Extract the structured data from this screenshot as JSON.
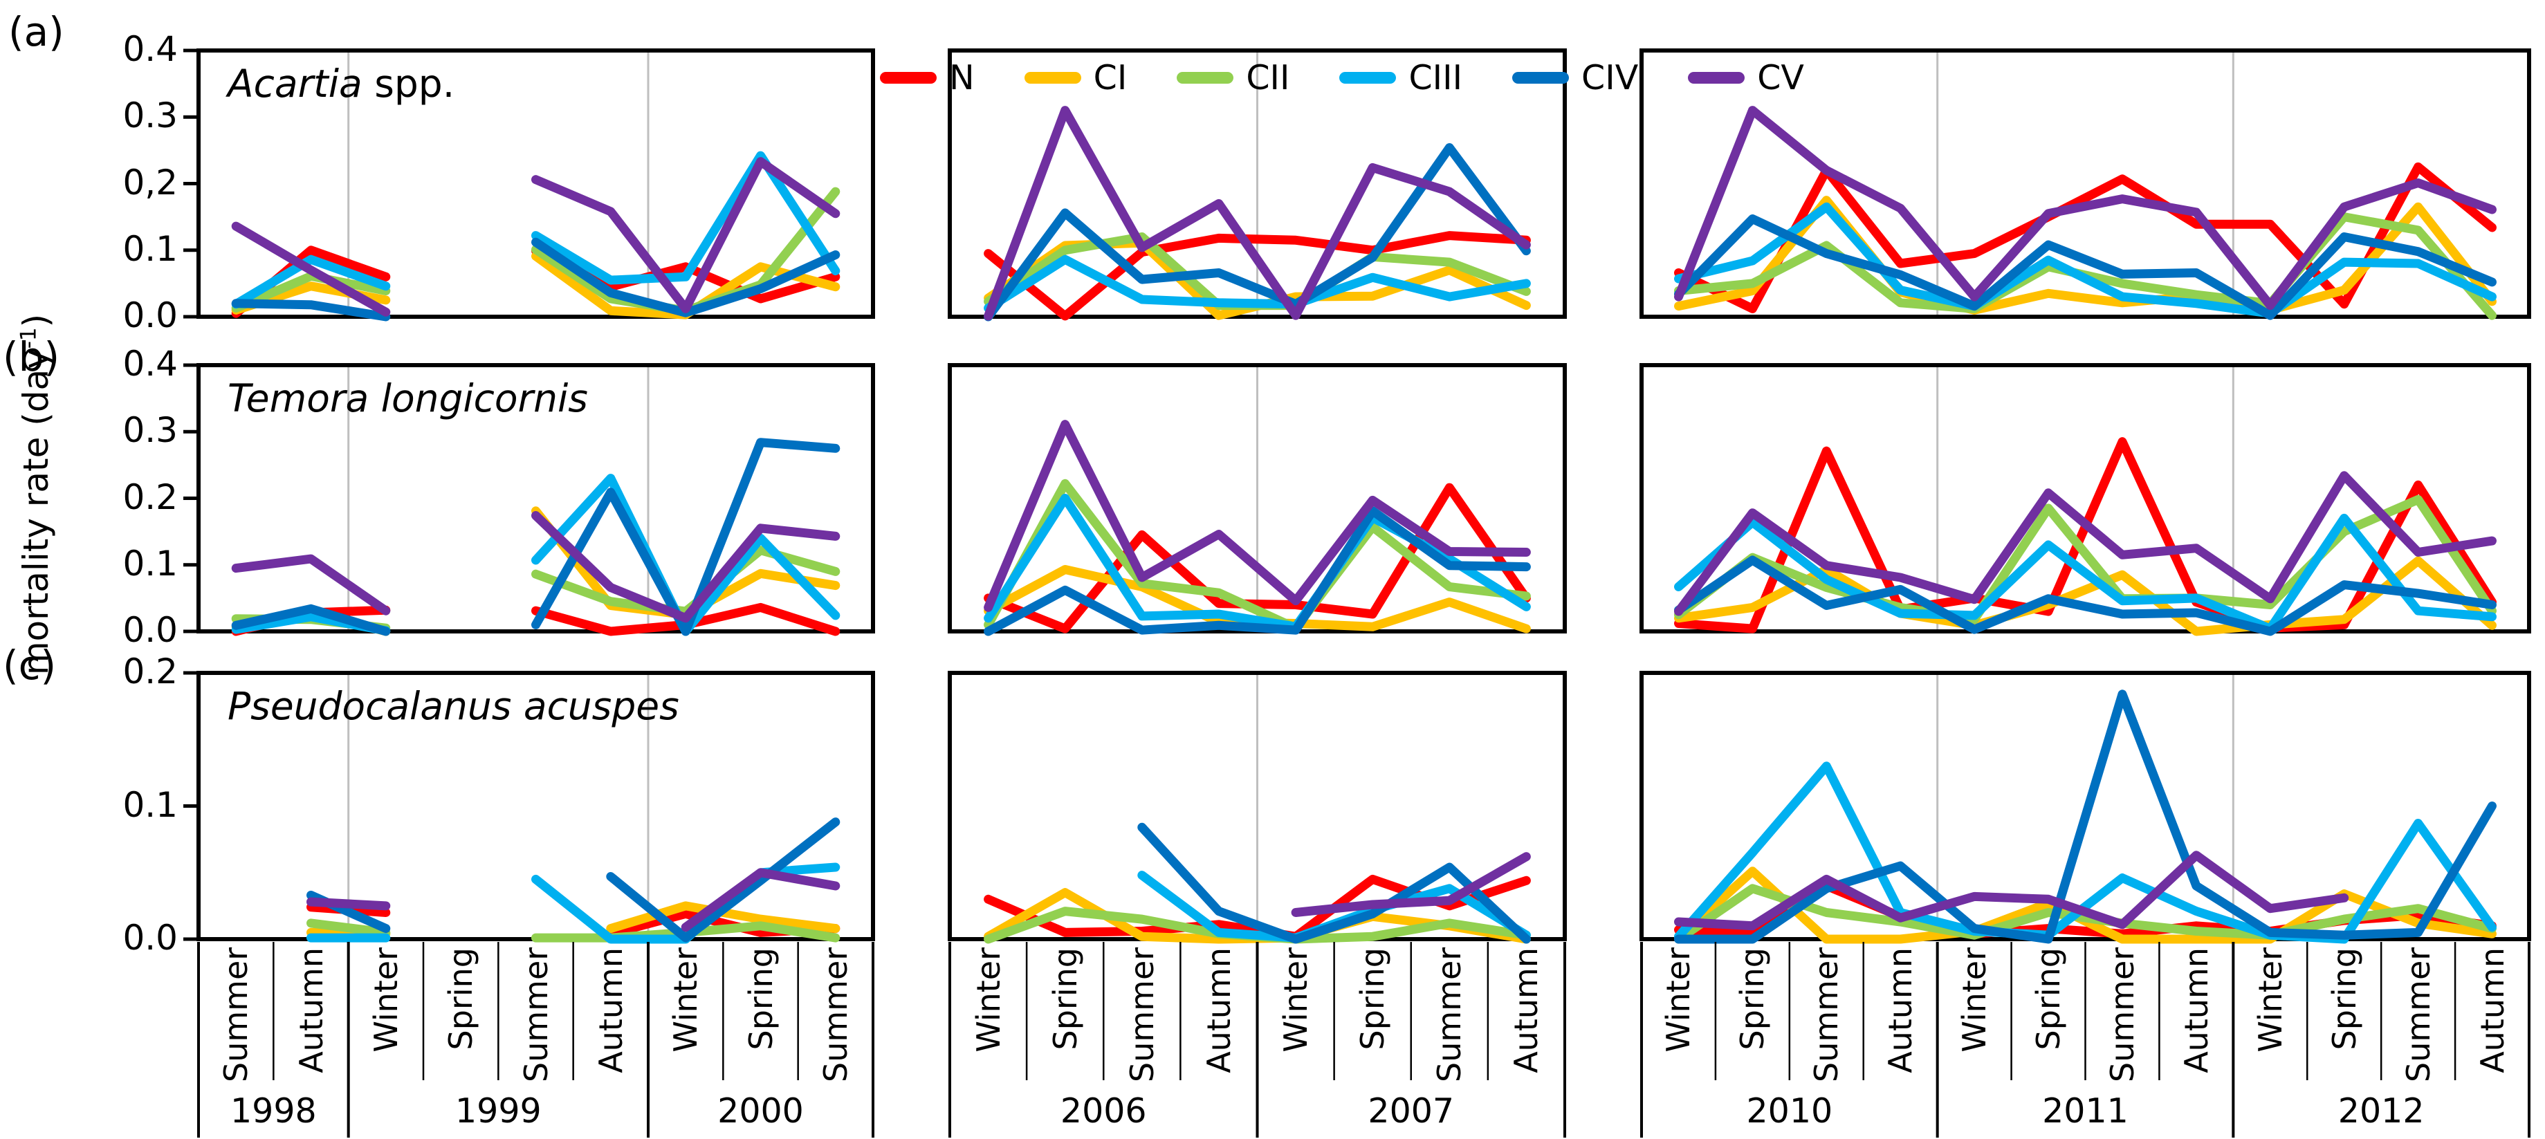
{
  "figure": {
    "panel_letters": [
      "(a)",
      "(b)",
      "(c)"
    ],
    "y_axis_label": {
      "prefix": "mortality rate (day",
      "superscript": "-1",
      "suffix": ")"
    }
  },
  "legend": {
    "items": [
      {
        "label": "N",
        "color": "#FF0000"
      },
      {
        "label": "CI",
        "color": "#FFC000"
      },
      {
        "label": "CII",
        "color": "#92D050"
      },
      {
        "label": "CIII",
        "color": "#00B0F0"
      },
      {
        "label": "CIV",
        "color": "#0070C0"
      },
      {
        "label": "CV",
        "color": "#7030A0"
      }
    ]
  },
  "x_axis": {
    "groups": [
      {
        "years": [
          {
            "label": "1998",
            "seasons": [
              "Summer",
              "Autumn"
            ]
          },
          {
            "label": "1999",
            "seasons": [
              "Winter",
              "Spring",
              "Summer",
              "Autumn"
            ]
          },
          {
            "label": "2000",
            "seasons": [
              "Winter",
              "Spring",
              "Summer"
            ]
          }
        ]
      },
      {
        "years": [
          {
            "label": "2006",
            "seasons": [
              "Winter",
              "Spring",
              "Summer",
              "Autumn"
            ]
          },
          {
            "label": "2007",
            "seasons": [
              "Winter",
              "Spring",
              "Summer",
              "Autumn"
            ]
          }
        ]
      },
      {
        "years": [
          {
            "label": "2010",
            "seasons": [
              "Winter",
              "Spring",
              "Summer",
              "Autumn"
            ]
          },
          {
            "label": "2011",
            "seasons": [
              "Winter",
              "Spring",
              "Summer",
              "Autumn"
            ]
          },
          {
            "label": "2012",
            "seasons": [
              "Winter",
              "Spring",
              "Summer",
              "Autumn"
            ]
          }
        ]
      }
    ]
  },
  "chart_data": [
    {
      "type": "line",
      "title": {
        "italic": "Acartia",
        "normal": " spp."
      },
      "ylim": [
        0,
        0.4
      ],
      "yticks": [
        "0.0",
        "0.1",
        "0,2",
        "0.3",
        "0.4"
      ],
      "x_categories": [
        "Summer 1998",
        "Autumn 1998",
        "Winter 1999",
        "Spring 1999",
        "Summer 1999",
        "Autumn 1999",
        "Winter 2000",
        "Spring 2000",
        "Summer 2000",
        "Winter 2006",
        "Spring 2006",
        "Summer 2006",
        "Autumn 2006",
        "Winter 2007",
        "Spring 2007",
        "Summer 2007",
        "Autumn 2007",
        "Winter 2010",
        "Spring 2010",
        "Summer 2010",
        "Autumn 2010",
        "Winter 2011",
        "Spring 2011",
        "Summer 2011",
        "Autumn 2011",
        "Winter 2012",
        "Spring 2012",
        "Summer 2012",
        "Autumn 2012"
      ],
      "series": [
        {
          "name": "N",
          "values": [
            0.005,
            0.1,
            0.06,
            null,
            0.099,
            0.045,
            0.075,
            0.027,
            0.06,
            0.095,
            0.001,
            0.097,
            0.118,
            0.115,
            0.1,
            0.122,
            0.115,
            0.066,
            0.012,
            0.22,
            0.08,
            0.095,
            0.15,
            0.207,
            0.139,
            0.139,
            0.019,
            0.225,
            0.134
          ]
        },
        {
          "name": "CI",
          "values": [
            0.01,
            0.046,
            0.025,
            null,
            0.091,
            0.009,
            0.003,
            0.075,
            0.045,
            0.028,
            0.107,
            0.111,
            0.002,
            0.03,
            0.031,
            0.07,
            0.017,
            0.016,
            0.039,
            0.175,
            0.037,
            0.01,
            0.035,
            0.021,
            0.031,
            0.01,
            0.04,
            0.165,
            0.023
          ]
        },
        {
          "name": "CII",
          "values": [
            0.013,
            0.061,
            0.039,
            null,
            0.101,
            0.027,
            0.009,
            0.048,
            0.188,
            0.023,
            0.1,
            0.12,
            0.017,
            0.017,
            0.09,
            0.082,
            0.038,
            0.039,
            0.05,
            0.107,
            0.021,
            0.012,
            0.075,
            0.05,
            0.033,
            0.02,
            0.15,
            0.13,
            0.002
          ]
        },
        {
          "name": "CIII",
          "values": [
            0.019,
            0.086,
            0.046,
            null,
            0.122,
            0.055,
            0.06,
            0.242,
            0.069,
            0.013,
            0.086,
            0.026,
            0.021,
            0.019,
            0.059,
            0.03,
            0.05,
            0.057,
            0.084,
            0.165,
            0.04,
            0.016,
            0.085,
            0.03,
            0.02,
            0.005,
            0.082,
            0.08,
            0.03
          ]
        },
        {
          "name": "CIV",
          "values": [
            0.02,
            0.018,
            0.0,
            null,
            0.112,
            0.036,
            0.006,
            0.042,
            0.093,
            0.0,
            0.156,
            0.056,
            0.066,
            0.019,
            0.089,
            0.254,
            0.099,
            0.034,
            0.147,
            0.095,
            0.063,
            0.016,
            0.108,
            0.064,
            0.066,
            0.002,
            0.12,
            0.098,
            0.052
          ]
        },
        {
          "name": "CV",
          "values": [
            0.136,
            0.07,
            0.007,
            null,
            0.206,
            0.158,
            0.012,
            0.233,
            0.155,
            0.001,
            0.31,
            0.104,
            0.17,
            0.002,
            0.224,
            0.188,
            0.108,
            0.03,
            0.31,
            0.22,
            0.163,
            0.03,
            0.155,
            0.177,
            0.157,
            0.017,
            0.165,
            0.201,
            0.161
          ]
        }
      ]
    },
    {
      "type": "line",
      "title": {
        "italic": "Temora longicornis",
        "normal": ""
      },
      "ylim": [
        0,
        0.4
      ],
      "yticks": [
        "0.0",
        "0.1",
        "0.2",
        "0.3",
        "0.4"
      ],
      "x_categories": [
        "Summer 1998",
        "Autumn 1998",
        "Winter 1999",
        "Spring 1999",
        "Summer 1999",
        "Autumn 1999",
        "Winter 2000",
        "Spring 2000",
        "Summer 2000",
        "Winter 2006",
        "Spring 2006",
        "Summer 2006",
        "Autumn 2006",
        "Winter 2007",
        "Spring 2007",
        "Summer 2007",
        "Autumn 2007",
        "Winter 2010",
        "Spring 2010",
        "Summer 2010",
        "Autumn 2010",
        "Winter 2011",
        "Spring 2011",
        "Summer 2011",
        "Autumn 2011",
        "Winter 2012",
        "Spring 2012",
        "Summer 2012",
        "Autumn 2012"
      ],
      "series": [
        {
          "name": "N",
          "values": [
            0.0,
            0.028,
            0.032,
            null,
            0.031,
            0.0,
            0.01,
            0.036,
            0.0,
            0.05,
            0.004,
            0.145,
            0.042,
            0.04,
            0.026,
            0.216,
            0.05,
            0.012,
            0.004,
            0.271,
            0.033,
            0.05,
            0.03,
            0.285,
            0.044,
            0.005,
            0.01,
            0.22,
            0.044
          ]
        },
        {
          "name": "CI",
          "values": [
            0.007,
            0.029,
            0.0,
            null,
            0.181,
            0.039,
            0.025,
            0.087,
            0.069,
            0.031,
            0.093,
            0.067,
            0.014,
            0.012,
            0.007,
            0.044,
            0.004,
            0.02,
            0.036,
            0.093,
            0.027,
            0.009,
            0.04,
            0.085,
            0.0,
            0.01,
            0.018,
            0.106,
            0.009
          ]
        },
        {
          "name": "CII",
          "values": [
            0.019,
            0.018,
            0.005,
            null,
            0.086,
            0.045,
            0.03,
            0.122,
            0.09,
            0.01,
            0.222,
            0.072,
            0.058,
            0.005,
            0.157,
            0.067,
            0.053,
            0.025,
            0.111,
            0.066,
            0.036,
            0.018,
            0.185,
            0.049,
            0.05,
            0.04,
            0.15,
            0.198,
            0.031
          ]
        },
        {
          "name": "CIII",
          "values": [
            0.003,
            0.022,
            0.001,
            null,
            0.107,
            0.23,
            0.0,
            0.14,
            0.024,
            0.02,
            0.2,
            0.023,
            0.026,
            0.007,
            0.171,
            0.109,
            0.037,
            0.067,
            0.164,
            0.078,
            0.027,
            0.024,
            0.13,
            0.046,
            0.05,
            0.004,
            0.17,
            0.031,
            0.022
          ]
        },
        {
          "name": "CIV",
          "values": [
            0.009,
            0.034,
            0.0,
            null,
            0.01,
            0.209,
            0.0,
            0.284,
            0.275,
            0.0,
            0.062,
            0.002,
            0.009,
            0.002,
            0.181,
            0.099,
            0.097,
            0.032,
            0.107,
            0.039,
            0.063,
            0.003,
            0.049,
            0.026,
            0.028,
            0.0,
            0.07,
            0.057,
            0.04
          ]
        },
        {
          "name": "CV",
          "values": [
            0.095,
            0.109,
            0.031,
            null,
            0.174,
            0.066,
            0.02,
            0.155,
            0.143,
            0.036,
            0.311,
            0.081,
            0.146,
            0.046,
            0.197,
            0.12,
            0.119,
            0.03,
            0.178,
            0.099,
            0.081,
            0.048,
            0.208,
            0.115,
            0.125,
            0.049,
            0.234,
            0.119,
            0.136
          ]
        }
      ]
    },
    {
      "type": "line",
      "title": {
        "italic": "Pseudocalanus acuspes",
        "normal": ""
      },
      "ylim": [
        0,
        0.2
      ],
      "yticks": [
        "0.0",
        "0.1",
        "0.2"
      ],
      "x_categories": [
        "Summer 1998",
        "Autumn 1998",
        "Winter 1999",
        "Spring 1999",
        "Summer 1999",
        "Autumn 1999",
        "Winter 2000",
        "Spring 2000",
        "Summer 2000",
        "Winter 2006",
        "Spring 2006",
        "Summer 2006",
        "Autumn 2006",
        "Winter 2007",
        "Spring 2007",
        "Summer 2007",
        "Autumn 2007",
        "Winter 2010",
        "Spring 2010",
        "Summer 2010",
        "Autumn 2010",
        "Winter 2011",
        "Spring 2011",
        "Summer 2011",
        "Autumn 2011",
        "Winter 2012",
        "Spring 2012",
        "Summer 2012",
        "Autumn 2012"
      ],
      "series": [
        {
          "name": "N",
          "values": [
            null,
            0.024,
            0.02,
            null,
            null,
            0.004,
            0.019,
            0.005,
            0.008,
            0.03,
            0.005,
            0.006,
            0.011,
            0.002,
            0.045,
            0.025,
            0.044,
            0.007,
            0.004,
            0.04,
            0.017,
            0.004,
            0.008,
            0.004,
            0.01,
            0.006,
            0.014,
            0.018,
            0.01
          ]
        },
        {
          "name": "CI",
          "values": [
            null,
            0.005,
            0.004,
            null,
            null,
            0.008,
            0.025,
            0.015,
            0.008,
            0.002,
            0.035,
            0.002,
            0.0,
            0.001,
            0.017,
            0.01,
            0.0,
            0.001,
            0.051,
            0.0,
            0.0,
            0.006,
            0.027,
            0.0,
            0.0,
            0.0,
            0.034,
            0.012,
            0.004
          ]
        },
        {
          "name": "CII",
          "values": [
            null,
            0.012,
            0.005,
            null,
            0.001,
            0.001,
            0.005,
            0.01,
            0.001,
            0.0,
            0.021,
            0.015,
            0.004,
            0.0,
            0.002,
            0.012,
            0.003,
            0.0,
            0.038,
            0.02,
            0.013,
            0.003,
            0.02,
            0.012,
            0.006,
            0.003,
            0.015,
            0.023,
            0.008
          ]
        },
        {
          "name": "CIII",
          "values": [
            null,
            0.001,
            0.001,
            null,
            0.045,
            0.0,
            0.0,
            0.05,
            0.054,
            null,
            null,
            0.048,
            0.005,
            0.001,
            0.022,
            0.038,
            0.003,
            0.002,
            0.065,
            0.13,
            0.02,
            0.006,
            0.003,
            0.046,
            0.021,
            0.003,
            0.0,
            0.087,
            0.009
          ]
        },
        {
          "name": "CIV",
          "values": [
            null,
            0.033,
            0.008,
            null,
            null,
            0.047,
            0.001,
            0.044,
            0.088,
            null,
            null,
            0.084,
            0.021,
            0.0,
            0.019,
            0.054,
            0.0,
            0.0,
            0.0,
            0.038,
            0.055,
            0.008,
            0.0,
            0.184,
            0.04,
            0.005,
            0.003,
            0.005,
            0.1
          ]
        },
        {
          "name": "CV",
          "values": [
            null,
            0.028,
            0.025,
            null,
            null,
            null,
            0.009,
            0.05,
            0.04,
            null,
            null,
            null,
            null,
            0.02,
            0.026,
            0.029,
            0.062,
            0.013,
            0.01,
            0.045,
            0.016,
            0.032,
            0.03,
            0.011,
            0.063,
            0.023,
            0.031,
            null,
            null
          ]
        }
      ]
    }
  ]
}
